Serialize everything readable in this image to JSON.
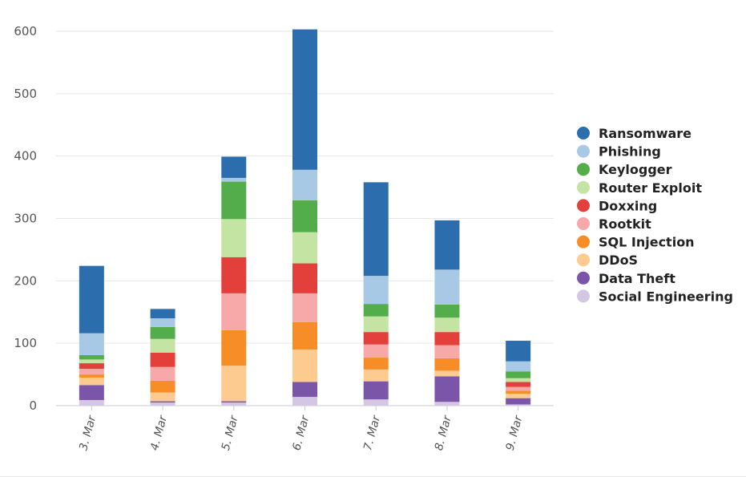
{
  "chart_data": {
    "type": "bar",
    "stacked": true,
    "categories": [
      "3. Mar",
      "4. Mar",
      "5. Mar",
      "6. Mar",
      "7. Mar",
      "8. Mar",
      "9. Mar"
    ],
    "ylim": [
      0,
      600
    ],
    "yticks": [
      0,
      100,
      200,
      300,
      400,
      500,
      600
    ],
    "grid": true,
    "legend_position": "right",
    "series": [
      {
        "name": "Social Engineering",
        "color": "#d4c7e3",
        "values": [
          9,
          5,
          5,
          14,
          10,
          6,
          2
        ]
      },
      {
        "name": "Data Theft",
        "color": "#7b55a7",
        "values": [
          24,
          2,
          2,
          24,
          29,
          41,
          10
        ]
      },
      {
        "name": "DDoS",
        "color": "#fdca8f",
        "values": [
          12,
          14,
          57,
          52,
          19,
          9,
          7
        ]
      },
      {
        "name": "SQL Injection",
        "color": "#f78d26",
        "values": [
          5,
          19,
          57,
          44,
          19,
          20,
          5
        ]
      },
      {
        "name": "Rootkit",
        "color": "#f7a8a8",
        "values": [
          9,
          22,
          59,
          46,
          21,
          21,
          6
        ]
      },
      {
        "name": "Doxxing",
        "color": "#e4403b",
        "values": [
          9,
          23,
          58,
          48,
          20,
          21,
          8
        ]
      },
      {
        "name": "Router Exploit",
        "color": "#c3e4a2",
        "values": [
          6,
          22,
          61,
          50,
          25,
          23,
          6
        ]
      },
      {
        "name": "Keylogger",
        "color": "#54ad4b",
        "values": [
          7,
          19,
          60,
          51,
          20,
          21,
          11
        ]
      },
      {
        "name": "Phishing",
        "color": "#a7c9e6",
        "values": [
          35,
          14,
          6,
          49,
          45,
          56,
          16
        ]
      },
      {
        "name": "Ransomware",
        "color": "#2b6dad",
        "values": [
          108,
          15,
          34,
          225,
          150,
          79,
          33
        ]
      }
    ]
  }
}
